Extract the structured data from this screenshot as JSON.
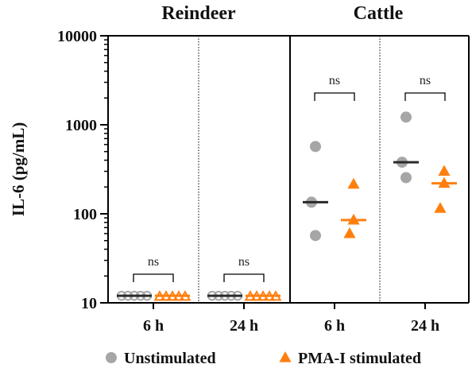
{
  "chart_data": {
    "type": "scatter",
    "ylabel": "IL-6 (pg/mL)",
    "yscale": "log",
    "ylim": [
      10,
      10000
    ],
    "yticks": [
      {
        "value": 10,
        "label": "10"
      },
      {
        "value": 100,
        "label": "100"
      },
      {
        "value": 1000,
        "label": "1000"
      },
      {
        "value": 10000,
        "label": "10000"
      }
    ],
    "panels": [
      "Reindeer",
      "Cattle"
    ],
    "groups": [
      {
        "panel": "Reindeer",
        "label": "6 h",
        "sig": "ns",
        "unstimulated": {
          "points": [
            12,
            12,
            12,
            12,
            12
          ],
          "median": 12
        },
        "stimulated": {
          "points": [
            12,
            12,
            12,
            12,
            12
          ],
          "median": 12
        }
      },
      {
        "panel": "Reindeer",
        "label": "24 h",
        "sig": "ns",
        "unstimulated": {
          "points": [
            12,
            12,
            12,
            12,
            12
          ],
          "median": 12
        },
        "stimulated": {
          "points": [
            12,
            12,
            12,
            12,
            12
          ],
          "median": 12
        }
      },
      {
        "panel": "Cattle",
        "label": "6 h",
        "sig": "ns",
        "unstimulated": {
          "points": [
            570,
            135,
            57
          ],
          "median": 135
        },
        "stimulated": {
          "points": [
            215,
            85,
            60
          ],
          "median": 85
        }
      },
      {
        "panel": "Cattle",
        "label": "24 h",
        "sig": "ns",
        "unstimulated": {
          "points": [
            1220,
            380,
            255
          ],
          "median": 380
        },
        "stimulated": {
          "points": [
            300,
            220,
            115
          ],
          "median": 220
        }
      }
    ],
    "series": [
      {
        "name": "Unstimulated",
        "marker": "circle",
        "color": "#a6a6a6",
        "median_color": "#2b2b2b"
      },
      {
        "name": "PMA-I stimulated",
        "marker": "triangle",
        "color": "#ff7f0e",
        "median_color": "#ff7f0e"
      }
    ],
    "legend": "bottom",
    "grid": false
  }
}
